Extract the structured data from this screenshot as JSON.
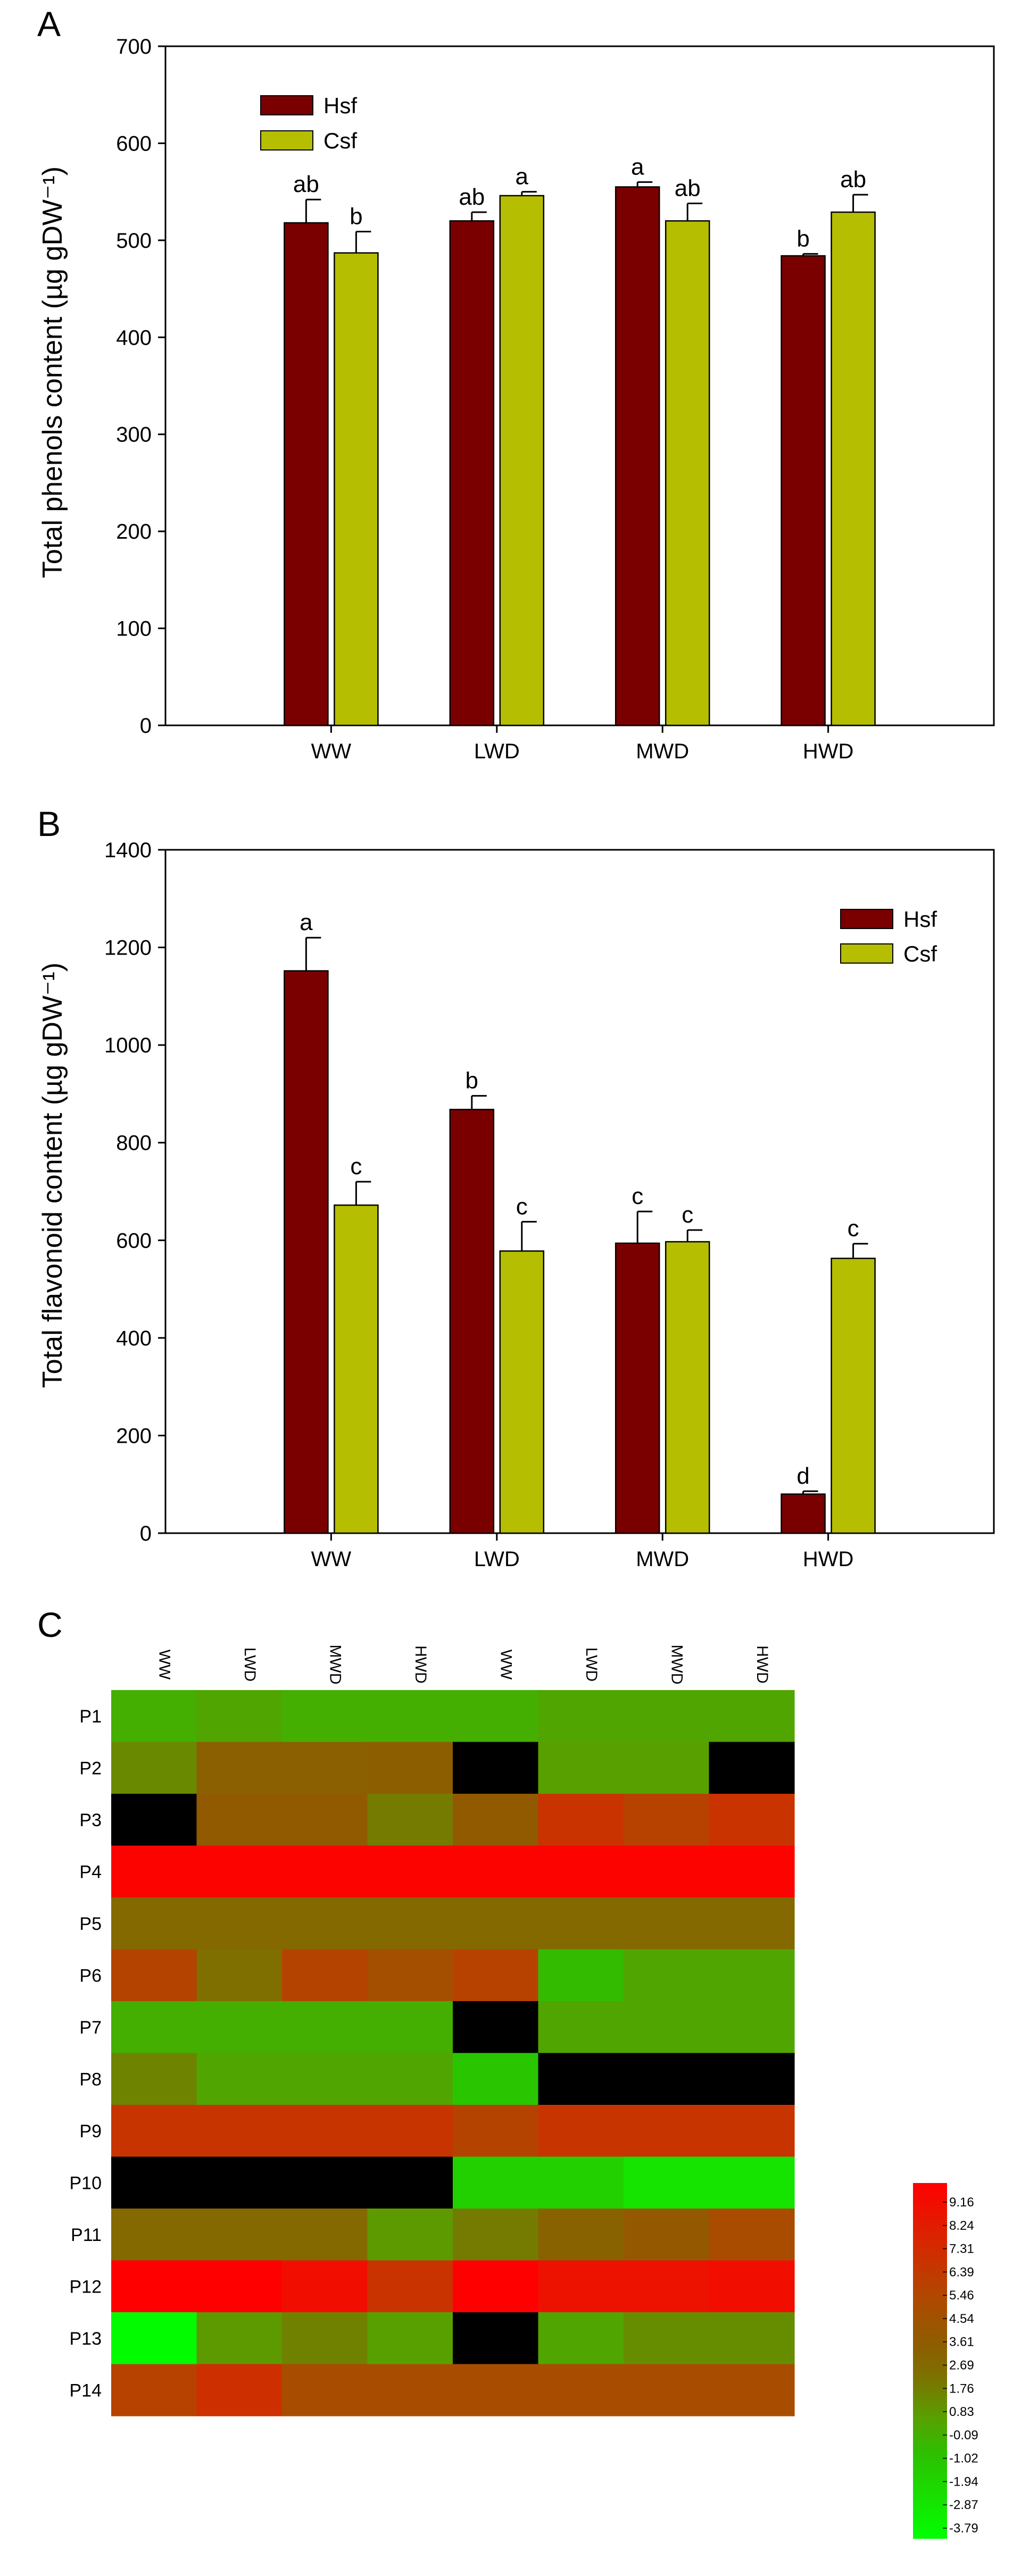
{
  "chart_data": [
    {
      "panel": "A",
      "type": "bar",
      "title": "",
      "xlabel": "",
      "ylabel": "Total phenols content (µg gDW⁻¹)",
      "ylim": [
        0,
        700
      ],
      "yticks": [
        0,
        100,
        200,
        300,
        400,
        500,
        600,
        700
      ],
      "categories": [
        "WW",
        "LWD",
        "MWD",
        "HWD"
      ],
      "legend_position": "top-left",
      "series": [
        {
          "name": "Hsf",
          "color": "#7a0000",
          "values": [
            518,
            520,
            555,
            484
          ],
          "errors": [
            24,
            9,
            5,
            2
          ],
          "letters": [
            "ab",
            "ab",
            "a",
            "b"
          ]
        },
        {
          "name": "Csf",
          "color": "#b5be00",
          "values": [
            487,
            546,
            520,
            529
          ],
          "errors": [
            22,
            4,
            18,
            18
          ],
          "letters": [
            "b",
            "a",
            "ab",
            "ab"
          ]
        }
      ]
    },
    {
      "panel": "B",
      "type": "bar",
      "title": "",
      "xlabel": "",
      "ylabel": "Total flavonoid content (µg gDW⁻¹)",
      "ylim": [
        0,
        1400
      ],
      "yticks": [
        0,
        200,
        400,
        600,
        800,
        1000,
        1200,
        1400
      ],
      "categories": [
        "WW",
        "LWD",
        "MWD",
        "HWD"
      ],
      "legend_position": "top-right",
      "series": [
        {
          "name": "Hsf",
          "color": "#7a0000",
          "values": [
            1152,
            868,
            594,
            80
          ],
          "errors": [
            68,
            28,
            65,
            6
          ],
          "letters": [
            "a",
            "b",
            "c",
            "d"
          ]
        },
        {
          "name": "Csf",
          "color": "#b5be00",
          "values": [
            672,
            578,
            597,
            563
          ],
          "errors": [
            48,
            60,
            24,
            30
          ],
          "letters": [
            "c",
            "c",
            "c",
            "c"
          ]
        }
      ]
    },
    {
      "panel": "C",
      "type": "heatmap",
      "columns": [
        "WW",
        "LWD",
        "MWD",
        "HWD",
        "WW",
        "LWD",
        "MWD",
        "HWD"
      ],
      "rows": [
        "P1",
        "P2",
        "P3",
        "P4",
        "P5",
        "P6",
        "P7",
        "P8",
        "P9",
        "P10",
        "P11",
        "P12",
        "P13",
        "P14"
      ],
      "missing": null,
      "values": [
        [
          0.0,
          0.4,
          0.0,
          0.0,
          0.0,
          0.4,
          0.4,
          0.4
        ],
        [
          1.3,
          3.1,
          3.1,
          3.2,
          null,
          0.6,
          0.6,
          null
        ],
        [
          null,
          3.5,
          3.5,
          1.8,
          3.5,
          6.3,
          5.4,
          6.3
        ],
        [
          9.0,
          9.0,
          9.0,
          9.0,
          9.0,
          9.0,
          9.0,
          9.0
        ],
        [
          2.6,
          2.6,
          2.6,
          2.6,
          2.6,
          2.6,
          2.6,
          2.6
        ],
        [
          5.3,
          2.3,
          5.3,
          4.4,
          5.4,
          -0.5,
          0.4,
          0.4
        ],
        [
          0.0,
          0.0,
          0.0,
          0.0,
          null,
          0.4,
          0.4,
          0.4
        ],
        [
          1.5,
          0.4,
          0.4,
          0.4,
          -1.0,
          null,
          null,
          null
        ],
        [
          6.2,
          6.2,
          6.2,
          6.2,
          5.3,
          6.2,
          6.2,
          6.2
        ],
        [
          null,
          null,
          null,
          null,
          -1.5,
          -1.5,
          -2.5,
          -2.5
        ],
        [
          2.6,
          2.6,
          2.6,
          0.8,
          1.8,
          3.0,
          3.6,
          4.7
        ],
        [
          9.5,
          9.5,
          8.4,
          6.3,
          9.6,
          8.2,
          8.2,
          8.4
        ],
        [
          -3.6,
          0.8,
          1.6,
          0.6,
          null,
          0.4,
          1.2,
          1.2
        ],
        [
          5.4,
          6.5,
          4.6,
          4.6,
          4.6,
          4.6,
          4.6,
          4.6
        ]
      ],
      "colorbar": {
        "labels": [
          "9.16",
          "8.24",
          "7.31",
          "6.39",
          "5.46",
          "4.54",
          "3.61",
          "2.69",
          "1.76",
          "0.83",
          "-0.09",
          "-1.02",
          "-1.94",
          "-2.87",
          "-3.79"
        ],
        "max": 9.16,
        "min": -3.79
      }
    }
  ]
}
